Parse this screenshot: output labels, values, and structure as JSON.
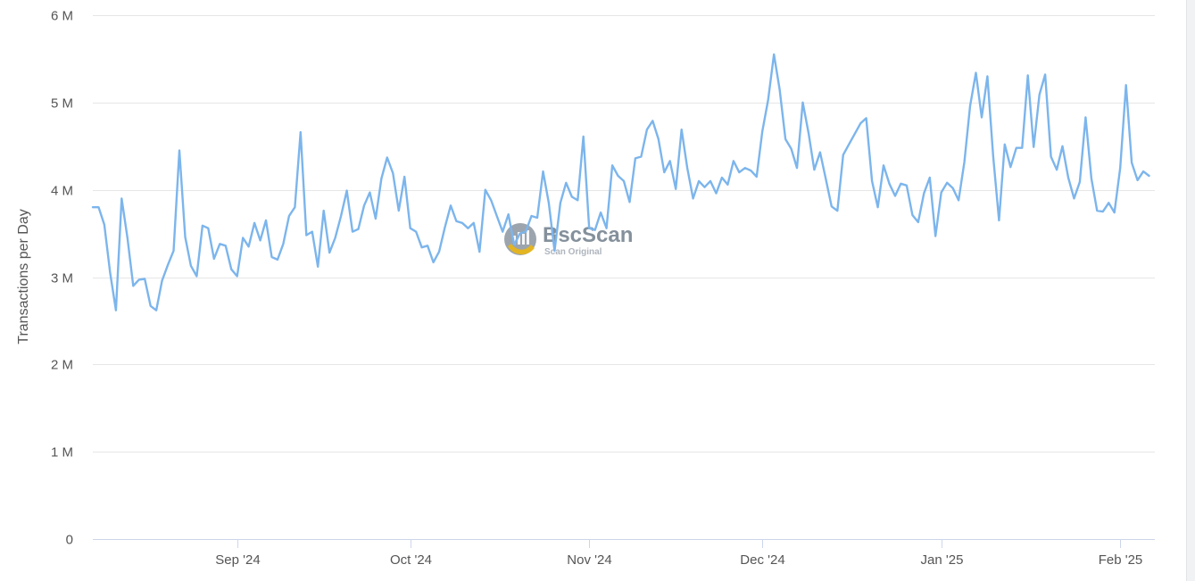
{
  "chart_data": {
    "type": "line",
    "xlabel": "",
    "ylabel": "Transactions per Day",
    "ylim": [
      0,
      6000000
    ],
    "y_ticks": [
      {
        "value": 0,
        "label": "0"
      },
      {
        "value": 1000000,
        "label": "1 M"
      },
      {
        "value": 2000000,
        "label": "2 M"
      },
      {
        "value": 3000000,
        "label": "3 M"
      },
      {
        "value": 4000000,
        "label": "4 M"
      },
      {
        "value": 5000000,
        "label": "5 M"
      },
      {
        "value": 6000000,
        "label": "6 M"
      }
    ],
    "xlim": [
      "2024-08-07",
      "2025-02-07"
    ],
    "x_ticks": [
      {
        "date": "2024-09-01",
        "label": "Sep '24"
      },
      {
        "date": "2024-10-01",
        "label": "Oct '24"
      },
      {
        "date": "2024-11-01",
        "label": "Nov '24"
      },
      {
        "date": "2024-12-01",
        "label": "Dec '24"
      },
      {
        "date": "2025-01-01",
        "label": "Jan '25"
      },
      {
        "date": "2025-02-01",
        "label": "Feb '25"
      }
    ],
    "grid": "horizontal",
    "line_color": "#7cb5ec",
    "series": [
      {
        "start_date": "2024-08-07",
        "values": [
          3800000,
          3800000,
          3600000,
          3050000,
          2620000,
          3900000,
          3450000,
          2900000,
          2970000,
          2980000,
          2670000,
          2620000,
          2960000,
          3140000,
          3300000,
          4450000,
          3460000,
          3130000,
          3010000,
          3590000,
          3560000,
          3210000,
          3380000,
          3360000,
          3090000,
          3010000,
          3450000,
          3350000,
          3620000,
          3420000,
          3650000,
          3230000,
          3200000,
          3380000,
          3700000,
          3800000,
          4660000,
          3480000,
          3520000,
          3120000,
          3760000,
          3280000,
          3450000,
          3700000,
          3990000,
          3520000,
          3550000,
          3820000,
          3970000,
          3670000,
          4130000,
          4370000,
          4190000,
          3760000,
          4150000,
          3560000,
          3520000,
          3340000,
          3360000,
          3170000,
          3290000,
          3570000,
          3820000,
          3640000,
          3620000,
          3560000,
          3620000,
          3290000,
          4000000,
          3880000,
          3700000,
          3520000,
          3720000,
          3370000,
          3500000,
          3520000,
          3700000,
          3680000,
          4210000,
          3850000,
          3300000,
          3850000,
          4080000,
          3920000,
          3880000,
          4610000,
          3560000,
          3540000,
          3740000,
          3560000,
          4280000,
          4160000,
          4100000,
          3860000,
          4360000,
          4380000,
          4690000,
          4790000,
          4580000,
          4200000,
          4330000,
          4010000,
          4690000,
          4250000,
          3900000,
          4100000,
          4030000,
          4100000,
          3960000,
          4140000,
          4060000,
          4330000,
          4200000,
          4250000,
          4220000,
          4150000,
          4670000,
          5030000,
          5550000,
          5150000,
          4580000,
          4470000,
          4250000,
          5000000,
          4650000,
          4230000,
          4430000,
          4120000,
          3810000,
          3760000,
          4400000,
          4520000,
          4640000,
          4760000,
          4820000,
          4100000,
          3800000,
          4280000,
          4070000,
          3930000,
          4070000,
          4050000,
          3710000,
          3630000,
          3960000,
          4140000,
          3470000,
          3970000,
          4080000,
          4020000,
          3880000,
          4320000,
          4960000,
          5340000,
          4830000,
          5300000,
          4380000,
          3650000,
          4520000,
          4260000,
          4480000,
          4480000,
          5310000,
          4490000,
          5090000,
          5320000,
          4380000,
          4230000,
          4500000,
          4140000,
          3900000,
          4090000,
          4830000,
          4130000,
          3760000,
          3750000,
          3850000,
          3740000,
          4250000,
          5200000,
          4310000,
          4110000,
          4210000,
          4160000
        ]
      }
    ]
  },
  "watermark": {
    "name": "BscScan",
    "tagline": "Scan Original"
  }
}
